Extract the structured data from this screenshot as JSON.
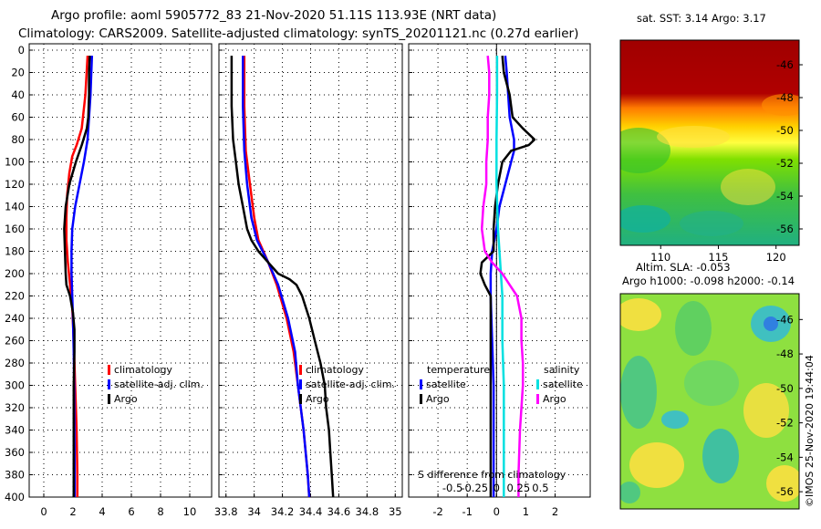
{
  "header": {
    "line1": "Argo profile: aoml 5905772_83 21-Nov-2020 51.11S 113.93E (NRT data)",
    "line2": "Climatology: CARS2009. Satellite-adjusted climatology: synTS_20201121.nc (0.27d earlier)"
  },
  "colors": {
    "climatology": "#ff0000",
    "satellite": "#0000ff",
    "argo": "#000000",
    "salinity_argo": "#ff00ff",
    "salinity_sat": "#00e0e0"
  },
  "chart_data": [
    {
      "type": "line",
      "id": "temperature",
      "xlim": [
        -1,
        11.5
      ],
      "ylim": [
        0,
        400
      ],
      "xticks": [
        0,
        2,
        4,
        6,
        8,
        10
      ],
      "xtick_labels": [
        "0",
        "2",
        "4",
        "6",
        "8",
        "10"
      ],
      "yticks": [
        0,
        20,
        40,
        60,
        80,
        100,
        120,
        140,
        160,
        180,
        200,
        220,
        240,
        260,
        280,
        300,
        320,
        340,
        360,
        380,
        400
      ],
      "ylabel_ticks": [
        "0",
        "20",
        "40",
        "60",
        "80",
        "100",
        "120",
        "140",
        "160",
        "180",
        "200",
        "220",
        "240",
        "260",
        "280",
        "300",
        "320",
        "340",
        "360",
        "380",
        "400"
      ],
      "legend": [
        "climatology",
        "satellite-adj. clim.",
        "Argo"
      ],
      "series": [
        {
          "name": "climatology",
          "color": "#ff0000",
          "depth": [
            5,
            40,
            70,
            85,
            95,
            110,
            130,
            150,
            170,
            190,
            210,
            230,
            260,
            300,
            340,
            380,
            400
          ],
          "value": [
            3.0,
            2.85,
            2.6,
            2.25,
            1.95,
            1.75,
            1.6,
            1.55,
            1.55,
            1.65,
            1.8,
            1.95,
            2.05,
            2.15,
            2.25,
            2.3,
            2.3
          ]
        },
        {
          "name": "satellite-adj. clim.",
          "color": "#0000ff",
          "depth": [
            5,
            40,
            80,
            100,
            120,
            140,
            160,
            180,
            200,
            220,
            240,
            270,
            300,
            340,
            380,
            400
          ],
          "value": [
            3.3,
            3.2,
            3.0,
            2.75,
            2.45,
            2.15,
            1.95,
            1.9,
            1.9,
            1.95,
            2.0,
            2.05,
            2.08,
            2.1,
            2.12,
            2.12
          ]
        },
        {
          "name": "Argo",
          "color": "#000000",
          "depth": [
            5,
            20,
            40,
            60,
            70,
            85,
            100,
            120,
            140,
            160,
            180,
            200,
            210,
            220,
            235,
            250,
            270,
            300,
            340,
            380,
            400
          ],
          "value": [
            3.15,
            3.1,
            3.1,
            3.05,
            2.95,
            2.6,
            2.2,
            1.75,
            1.5,
            1.4,
            1.45,
            1.5,
            1.55,
            1.8,
            2.0,
            2.1,
            2.1,
            2.05,
            2.05,
            2.05,
            2.05
          ]
        }
      ]
    },
    {
      "type": "line",
      "id": "salinity",
      "xlim": [
        33.75,
        35.05
      ],
      "ylim": [
        0,
        400
      ],
      "xticks": [
        33.8,
        34,
        34.2,
        34.4,
        34.6,
        34.8,
        35
      ],
      "xtick_labels": [
        "33.8",
        "34",
        "34.2",
        "34.4",
        "34.6",
        "34.8",
        "35"
      ],
      "legend": [
        "climatology",
        "satellite-adj. clim.",
        "Argo"
      ],
      "series": [
        {
          "name": "climatology",
          "color": "#ff0000",
          "depth": [
            5,
            50,
            90,
            120,
            150,
            170,
            190,
            210,
            240,
            270,
            300,
            340,
            380,
            400
          ],
          "value": [
            33.93,
            33.93,
            33.94,
            33.97,
            34.0,
            34.03,
            34.1,
            34.16,
            34.23,
            34.28,
            34.31,
            34.35,
            34.38,
            34.39
          ]
        },
        {
          "name": "satellite-adj. clim.",
          "color": "#0000ff",
          "depth": [
            5,
            50,
            90,
            120,
            150,
            170,
            190,
            210,
            240,
            270,
            300,
            340,
            380,
            400
          ],
          "value": [
            33.92,
            33.92,
            33.93,
            33.95,
            33.98,
            34.02,
            34.1,
            34.17,
            34.24,
            34.29,
            34.31,
            34.35,
            34.38,
            34.39
          ]
        },
        {
          "name": "Argo",
          "color": "#000000",
          "depth": [
            5,
            50,
            80,
            100,
            120,
            140,
            160,
            170,
            180,
            190,
            200,
            205,
            210,
            220,
            240,
            260,
            280,
            300,
            320,
            340,
            360,
            380,
            400
          ],
          "value": [
            33.84,
            33.84,
            33.85,
            33.87,
            33.89,
            33.92,
            33.95,
            33.98,
            34.03,
            34.1,
            34.17,
            34.25,
            34.3,
            34.34,
            34.39,
            34.43,
            34.47,
            34.5,
            34.51,
            34.53,
            34.54,
            34.55,
            34.56
          ]
        }
      ]
    },
    {
      "type": "line",
      "id": "difference",
      "title": "S difference from climatology",
      "xlim": [
        -3,
        3.2
      ],
      "ylim": [
        0,
        400
      ],
      "xticks": [
        -2,
        -1,
        0,
        1,
        2
      ],
      "xtick_labels": [
        "-2",
        "-1",
        "0",
        "1",
        "2"
      ],
      "top_tick_labels": [
        "-0.5",
        "-0.25",
        "0",
        "0.25",
        "0.5"
      ],
      "legend_groups": {
        "temperature": [
          "satellite",
          "Argo"
        ],
        "salinity": [
          "satellite",
          "Argo"
        ]
      },
      "legend_labels": {
        "temperature": "temperature",
        "salinity": "salinity",
        "satellite": "satellite",
        "argo": "Argo"
      },
      "series": [
        {
          "name": "temperature satellite",
          "color": "#0000ff",
          "depth": [
            5,
            20,
            40,
            60,
            80,
            90,
            100,
            120,
            140,
            160,
            180,
            200,
            220,
            260,
            300,
            340,
            380,
            400
          ],
          "value": [
            0.3,
            0.35,
            0.4,
            0.45,
            0.6,
            0.6,
            0.5,
            0.3,
            0.1,
            0.0,
            -0.15,
            -0.2,
            -0.2,
            -0.15,
            -0.1,
            -0.1,
            -0.1,
            -0.1
          ]
        },
        {
          "name": "temperature Argo",
          "color": "#000000",
          "depth": [
            5,
            20,
            40,
            60,
            70,
            80,
            85,
            90,
            100,
            120,
            140,
            160,
            180,
            190,
            200,
            210,
            220,
            260,
            300,
            340,
            380,
            400
          ],
          "value": [
            0.2,
            0.25,
            0.45,
            0.55,
            0.9,
            1.3,
            1.1,
            0.5,
            0.2,
            0.05,
            -0.05,
            -0.1,
            -0.1,
            -0.5,
            -0.55,
            -0.4,
            -0.2,
            -0.2,
            -0.2,
            -0.2,
            -0.2,
            -0.2
          ]
        },
        {
          "name": "salinity satellite",
          "color": "#00e0e0",
          "depth": [
            5,
            40,
            80,
            120,
            160,
            180,
            200,
            220,
            260,
            300,
            340,
            380,
            400
          ],
          "value": [
            0.02,
            0.02,
            0.0,
            0.0,
            0.05,
            0.1,
            0.15,
            0.2,
            0.2,
            0.25,
            0.25,
            0.25,
            0.25
          ]
        },
        {
          "name": "salinity Argo",
          "color": "#ff00ff",
          "depth": [
            5,
            20,
            40,
            60,
            80,
            100,
            120,
            140,
            160,
            180,
            190,
            200,
            210,
            220,
            240,
            260,
            280,
            300,
            340,
            380,
            400
          ],
          "value": [
            -0.3,
            -0.25,
            -0.25,
            -0.3,
            -0.3,
            -0.35,
            -0.35,
            -0.45,
            -0.5,
            -0.4,
            -0.15,
            0.2,
            0.45,
            0.7,
            0.85,
            0.85,
            0.9,
            0.9,
            0.8,
            0.75,
            0.75
          ]
        }
      ]
    },
    {
      "type": "heatmap",
      "id": "sst_map",
      "title": "sat. SST: 3.14 Argo: 3.17",
      "xlim": [
        106.5,
        122
      ],
      "ylim": [
        -57,
        -44.5
      ],
      "yticks": [
        -46,
        -48,
        -50,
        -52,
        -54,
        -56
      ],
      "ytick_labels": [
        "-46",
        "-48",
        "-50",
        "-52",
        "-54",
        "-56"
      ],
      "xticks": [
        110,
        115,
        120
      ],
      "xtick_labels": [
        "110",
        "115",
        "120"
      ]
    },
    {
      "type": "heatmap",
      "id": "sla_map",
      "title1": "Altim. SLA: -0.053",
      "title2": "Argo h1000: -0.098 h2000: -0.14",
      "xlim": [
        106.5,
        122
      ],
      "ylim": [
        -57,
        -44.5
      ],
      "yticks": [
        -46,
        -48,
        -50,
        -52,
        -54,
        -56
      ],
      "ytick_labels": [
        "-46",
        "-48",
        "-50",
        "-52",
        "-54",
        "-56"
      ]
    }
  ],
  "credit": "©IMOS 25-Nov-2020 19:44:04"
}
